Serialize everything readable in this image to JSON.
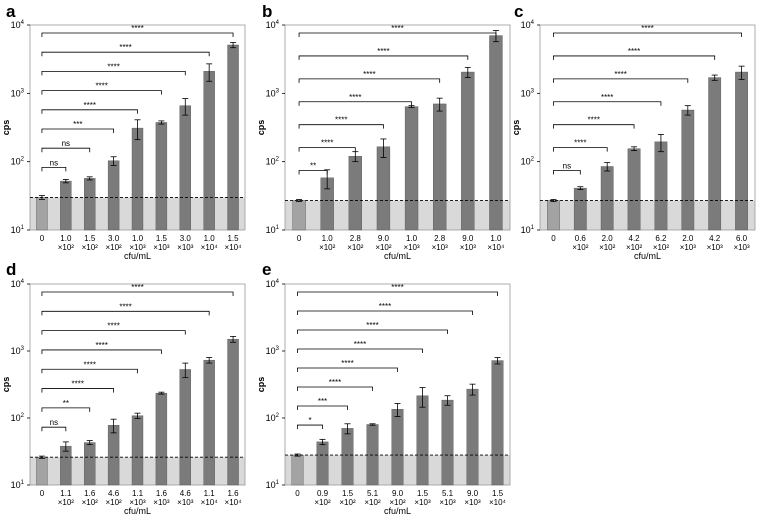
{
  "chart_data": [
    {
      "panel": "a",
      "type": "bar",
      "ylabel": "cps",
      "xlabel": "cfu/mL",
      "yscale": "log",
      "ylim": [
        10,
        10000
      ],
      "yticks": [
        {
          "b": "10",
          "e": "1"
        },
        {
          "b": "10",
          "e": "2"
        },
        {
          "b": "10",
          "e": "3"
        },
        {
          "b": "10",
          "e": "4"
        }
      ],
      "categories": [
        [
          "0"
        ],
        [
          "1.0",
          "×10²"
        ],
        [
          "1.5",
          "×10²"
        ],
        [
          "3.0",
          "×10²"
        ],
        [
          "1.0",
          "×10³"
        ],
        [
          "1.5",
          "×10³"
        ],
        [
          "3.0",
          "×10³"
        ],
        [
          "1.0",
          "×10⁴"
        ],
        [
          "1.5",
          "×10⁴"
        ]
      ],
      "values": [
        30,
        52,
        57,
        103,
        310,
        375,
        660,
        2100,
        5100
      ],
      "errors": [
        2,
        3,
        3,
        15,
        100,
        20,
        180,
        600,
        450
      ],
      "threshold": 30,
      "significance": [
        {
          "to": 1,
          "label": "ns"
        },
        {
          "to": 2,
          "label": "ns"
        },
        {
          "to": 3,
          "label": "***"
        },
        {
          "to": 4,
          "label": "****"
        },
        {
          "to": 5,
          "label": "****"
        },
        {
          "to": 6,
          "label": "****"
        },
        {
          "to": 7,
          "label": "****"
        },
        {
          "to": 8,
          "label": "****"
        }
      ]
    },
    {
      "panel": "b",
      "type": "bar",
      "ylabel": "cps",
      "xlabel": "cfu/mL",
      "yscale": "log",
      "ylim": [
        10,
        10000
      ],
      "yticks": [
        {
          "b": "10",
          "e": "1"
        },
        {
          "b": "10",
          "e": "2"
        },
        {
          "b": "10",
          "e": "3"
        },
        {
          "b": "10",
          "e": "4"
        }
      ],
      "categories": [
        [
          "0"
        ],
        [
          "1.0",
          "×10²"
        ],
        [
          "2.8",
          "×10²"
        ],
        [
          "9.0",
          "×10²"
        ],
        [
          "1.0",
          "×10³"
        ],
        [
          "2.8",
          "×10³"
        ],
        [
          "9.0",
          "×10³"
        ],
        [
          "1.0",
          "×10⁴"
        ]
      ],
      "values": [
        27,
        58,
        120,
        165,
        640,
        700,
        2050,
        7000
      ],
      "errors": [
        1,
        18,
        20,
        50,
        20,
        150,
        350,
        1300
      ],
      "threshold": 27,
      "significance": [
        {
          "to": 1,
          "label": "**"
        },
        {
          "to": 2,
          "label": "****"
        },
        {
          "to": 3,
          "label": "****"
        },
        {
          "to": 4,
          "label": "****"
        },
        {
          "to": 5,
          "label": "****"
        },
        {
          "to": 6,
          "label": "****"
        },
        {
          "to": 7,
          "label": "****"
        }
      ]
    },
    {
      "panel": "c",
      "type": "bar",
      "ylabel": "cps",
      "xlabel": "cfu/mL",
      "yscale": "log",
      "ylim": [
        10,
        10000
      ],
      "yticks": [
        {
          "b": "10",
          "e": "1"
        },
        {
          "b": "10",
          "e": "2"
        },
        {
          "b": "10",
          "e": "3"
        },
        {
          "b": "10",
          "e": "4"
        }
      ],
      "categories": [
        [
          "0"
        ],
        [
          "0.6",
          "×10²"
        ],
        [
          "2.0",
          "×10²"
        ],
        [
          "4.2",
          "×10²"
        ],
        [
          "6.2",
          "×10²"
        ],
        [
          "2.0",
          "×10³"
        ],
        [
          "4.2",
          "×10³"
        ],
        [
          "6.0",
          "×10³"
        ]
      ],
      "values": [
        27,
        41,
        85,
        155,
        195,
        570,
        1700,
        2050
      ],
      "errors": [
        1,
        2,
        12,
        10,
        55,
        90,
        150,
        450
      ],
      "threshold": 27,
      "significance": [
        {
          "to": 1,
          "label": "ns"
        },
        {
          "to": 2,
          "label": "****"
        },
        {
          "to": 3,
          "label": "****"
        },
        {
          "to": 4,
          "label": "****"
        },
        {
          "to": 5,
          "label": "****"
        },
        {
          "to": 6,
          "label": "****"
        },
        {
          "to": 7,
          "label": "****"
        }
      ]
    },
    {
      "panel": "d",
      "type": "bar",
      "ylabel": "cps",
      "xlabel": "cfu/mL",
      "yscale": "log",
      "ylim": [
        10,
        10000
      ],
      "yticks": [
        {
          "b": "10",
          "e": "1"
        },
        {
          "b": "10",
          "e": "2"
        },
        {
          "b": "10",
          "e": "3"
        },
        {
          "b": "10",
          "e": "4"
        }
      ],
      "categories": [
        [
          "0"
        ],
        [
          "1.1",
          "×10²"
        ],
        [
          "1.6",
          "×10²"
        ],
        [
          "4.6",
          "×10²"
        ],
        [
          "1.1",
          "×10³"
        ],
        [
          "1.6",
          "×10³"
        ],
        [
          "4.6",
          "×10³"
        ],
        [
          "1.1",
          "×10⁴"
        ],
        [
          "1.6",
          "×10⁴"
        ]
      ],
      "values": [
        26,
        38,
        43,
        78,
        108,
        235,
        530,
        730,
        1500
      ],
      "errors": [
        1,
        6,
        3,
        18,
        10,
        8,
        130,
        70,
        150
      ],
      "threshold": 26,
      "significance": [
        {
          "to": 1,
          "label": "ns"
        },
        {
          "to": 2,
          "label": "**"
        },
        {
          "to": 3,
          "label": "****"
        },
        {
          "to": 4,
          "label": "****"
        },
        {
          "to": 5,
          "label": "****"
        },
        {
          "to": 6,
          "label": "****"
        },
        {
          "to": 7,
          "label": "****"
        },
        {
          "to": 8,
          "label": "****"
        }
      ]
    },
    {
      "panel": "e",
      "type": "bar",
      "ylabel": "cps",
      "xlabel": "cfu/mL",
      "yscale": "log",
      "ylim": [
        10,
        10000
      ],
      "yticks": [
        {
          "b": "10",
          "e": "1"
        },
        {
          "b": "10",
          "e": "2"
        },
        {
          "b": "10",
          "e": "3"
        },
        {
          "b": "10",
          "e": "4"
        }
      ],
      "categories": [
        [
          "0"
        ],
        [
          "0.9",
          "×10²"
        ],
        [
          "1.5",
          "×10²"
        ],
        [
          "5.1",
          "×10²"
        ],
        [
          "9.0",
          "×10²"
        ],
        [
          "1.5",
          "×10³"
        ],
        [
          "5.1",
          "×10³"
        ],
        [
          "9.0",
          "×10³"
        ],
        [
          "1.5",
          "×10⁴"
        ]
      ],
      "values": [
        28,
        44,
        70,
        80,
        135,
        215,
        185,
        270,
        720
      ],
      "errors": [
        1,
        4,
        12,
        2,
        30,
        70,
        30,
        50,
        80
      ],
      "threshold": 28,
      "significance": [
        {
          "to": 1,
          "label": "*"
        },
        {
          "to": 2,
          "label": "***"
        },
        {
          "to": 3,
          "label": "****"
        },
        {
          "to": 4,
          "label": "****"
        },
        {
          "to": 5,
          "label": "****"
        },
        {
          "to": 6,
          "label": "****"
        },
        {
          "to": 7,
          "label": "****"
        },
        {
          "to": 8,
          "label": "****"
        }
      ]
    }
  ],
  "colors": {
    "bar_control": "#a3a3a3",
    "bar": "#7b7b7b",
    "background_band": "#d9d9d9",
    "frame": "#999999",
    "axis": "#000000"
  }
}
